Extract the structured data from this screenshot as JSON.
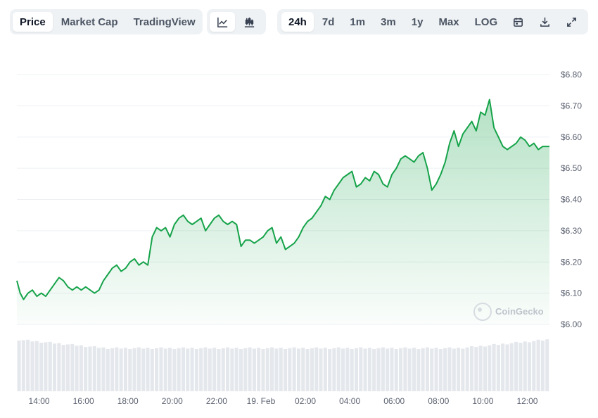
{
  "toolbar": {
    "view_tabs": [
      {
        "label": "Price",
        "active": true
      },
      {
        "label": "Market Cap",
        "active": false
      },
      {
        "label": "TradingView",
        "active": false
      }
    ],
    "chart_type_icons": [
      "line-chart-icon",
      "candlestick-chart-icon"
    ],
    "ranges": [
      {
        "label": "24h",
        "active": true
      },
      {
        "label": "7d",
        "active": false
      },
      {
        "label": "1m",
        "active": false
      },
      {
        "label": "3m",
        "active": false
      },
      {
        "label": "1y",
        "active": false
      },
      {
        "label": "Max",
        "active": false
      },
      {
        "label": "LOG",
        "active": false
      }
    ],
    "action_icons": [
      "calendar-icon",
      "download-icon",
      "expand-icon"
    ]
  },
  "watermark": "CoinGecko",
  "colors": {
    "line": "#16a34a",
    "area_top": "#16a34a",
    "grid": "#eef0f3",
    "volume": "#e4e7ec",
    "active_bg": "#ffffff",
    "group_bg": "#eff2f5"
  },
  "chart_data": {
    "type": "area",
    "title": "",
    "x_tick_labels": [
      "14:00",
      "16:00",
      "18:00",
      "20:00",
      "22:00",
      "19. Feb",
      "02:00",
      "04:00",
      "06:00",
      "08:00",
      "10:00",
      "12:00"
    ],
    "y_tick_labels": [
      "$6.00",
      "$6.10",
      "$6.20",
      "$6.30",
      "$6.40",
      "$6.50",
      "$6.60",
      "$6.70",
      "$6.80"
    ],
    "ylim": [
      6.0,
      6.8
    ],
    "y_axis_position": "right",
    "grid": true,
    "legend": "none",
    "series": [
      {
        "x_hours": [
          0.0,
          0.15,
          0.3,
          0.5,
          0.7,
          0.9,
          1.1,
          1.3,
          1.5,
          1.7,
          1.9,
          2.1,
          2.3,
          2.5,
          2.7,
          2.9,
          3.1,
          3.3,
          3.5,
          3.7,
          3.9,
          4.1,
          4.3,
          4.5,
          4.7,
          4.9,
          5.1,
          5.3,
          5.5,
          5.7,
          5.9,
          6.1,
          6.3,
          6.5,
          6.7,
          6.9,
          7.1,
          7.3,
          7.5,
          7.7,
          7.9,
          8.1,
          8.3,
          8.5,
          8.7,
          8.9,
          9.1,
          9.3,
          9.5,
          9.7,
          9.9,
          10.1,
          10.3,
          10.5,
          10.7,
          10.9,
          11.1,
          11.3,
          11.5,
          11.7,
          11.9,
          12.1,
          12.3,
          12.5,
          12.7,
          12.9,
          13.1,
          13.3,
          13.5,
          13.7,
          13.9,
          14.1,
          14.3,
          14.5,
          14.7,
          14.9,
          15.1,
          15.3,
          15.5,
          15.7,
          15.9,
          16.1,
          16.3,
          16.5,
          16.7,
          16.9,
          17.1,
          17.3,
          17.5,
          17.7,
          17.9,
          18.1,
          18.3,
          18.5,
          18.7,
          18.9,
          19.1,
          19.3,
          19.5,
          19.7,
          19.9,
          20.1,
          20.3,
          20.5,
          20.7,
          20.9,
          21.1,
          21.3,
          21.5,
          21.7,
          21.9,
          22.1,
          22.3,
          22.5,
          22.7,
          22.9,
          23.1,
          23.3,
          23.5,
          23.7,
          23.9,
          24.0
        ],
        "values": [
          6.14,
          6.1,
          6.08,
          6.1,
          6.11,
          6.09,
          6.1,
          6.09,
          6.11,
          6.13,
          6.15,
          6.14,
          6.12,
          6.11,
          6.12,
          6.11,
          6.12,
          6.11,
          6.1,
          6.11,
          6.14,
          6.16,
          6.18,
          6.19,
          6.17,
          6.18,
          6.2,
          6.21,
          6.19,
          6.2,
          6.19,
          6.28,
          6.31,
          6.3,
          6.31,
          6.28,
          6.32,
          6.34,
          6.35,
          6.33,
          6.32,
          6.33,
          6.34,
          6.3,
          6.32,
          6.34,
          6.35,
          6.33,
          6.32,
          6.33,
          6.32,
          6.25,
          6.27,
          6.27,
          6.26,
          6.27,
          6.28,
          6.3,
          6.31,
          6.26,
          6.28,
          6.24,
          6.25,
          6.26,
          6.28,
          6.31,
          6.33,
          6.34,
          6.36,
          6.38,
          6.41,
          6.4,
          6.43,
          6.45,
          6.47,
          6.48,
          6.49,
          6.44,
          6.45,
          6.47,
          6.46,
          6.49,
          6.48,
          6.45,
          6.44,
          6.48,
          6.5,
          6.53,
          6.54,
          6.53,
          6.52,
          6.54,
          6.55,
          6.5,
          6.43,
          6.45,
          6.48,
          6.52,
          6.58,
          6.62,
          6.57,
          6.61,
          6.63,
          6.65,
          6.62,
          6.68,
          6.67,
          6.72,
          6.63,
          6.6,
          6.57,
          6.56,
          6.57,
          6.58,
          6.6,
          6.59,
          6.57,
          6.58,
          6.56,
          6.57,
          6.57,
          6.57
        ],
        "note_x": "hours elapsed from 13:00 on the 24h window"
      }
    ],
    "volume_bars": {
      "count": 120,
      "profile": "uniform, slightly higher at both ends"
    }
  }
}
